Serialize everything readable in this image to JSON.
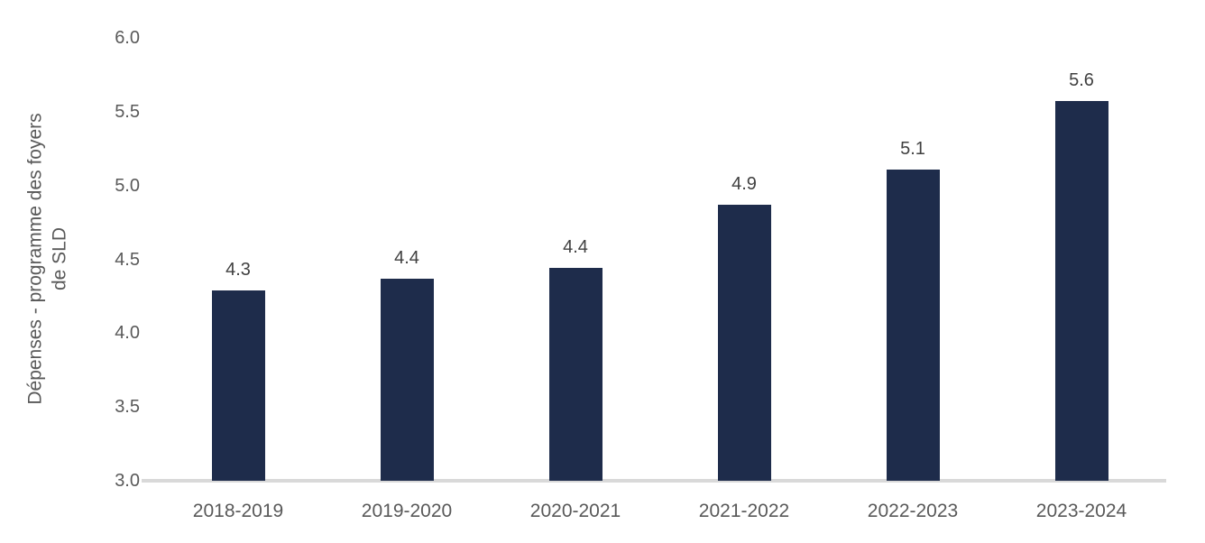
{
  "chart_data": {
    "type": "bar",
    "title": "",
    "categories": [
      "2018-2019",
      "2019-2020",
      "2020-2021",
      "2021-2022",
      "2022-2023",
      "2023-2024"
    ],
    "values": [
      4.3,
      4.4,
      4.4,
      4.9,
      5.1,
      5.6
    ],
    "bar_heights_estimate": [
      4.29,
      4.37,
      4.44,
      4.87,
      5.11,
      5.57
    ],
    "data_labels": [
      "4.3",
      "4.4",
      "4.4",
      "4.9",
      "5.1",
      "5.6"
    ],
    "xlabel": "",
    "ylabel": "Dépenses - programme des foyers de SLD",
    "ylabel_lines": [
      "Dépenses - programme des foyers",
      "de SLD"
    ],
    "yticks": [
      "6.0",
      "5.5",
      "5.0",
      "4.5",
      "4.0",
      "3.5",
      "3.0"
    ],
    "ytick_values": [
      6.0,
      5.5,
      5.0,
      4.5,
      4.0,
      3.5,
      3.0
    ],
    "ylim": [
      3.0,
      6.0
    ],
    "grid": false,
    "legend": null,
    "colors": {
      "bar": "#1e2c4b",
      "axis_line": "#d9d9d9",
      "tick_text": "#595959",
      "data_label_text": "#404040"
    }
  }
}
